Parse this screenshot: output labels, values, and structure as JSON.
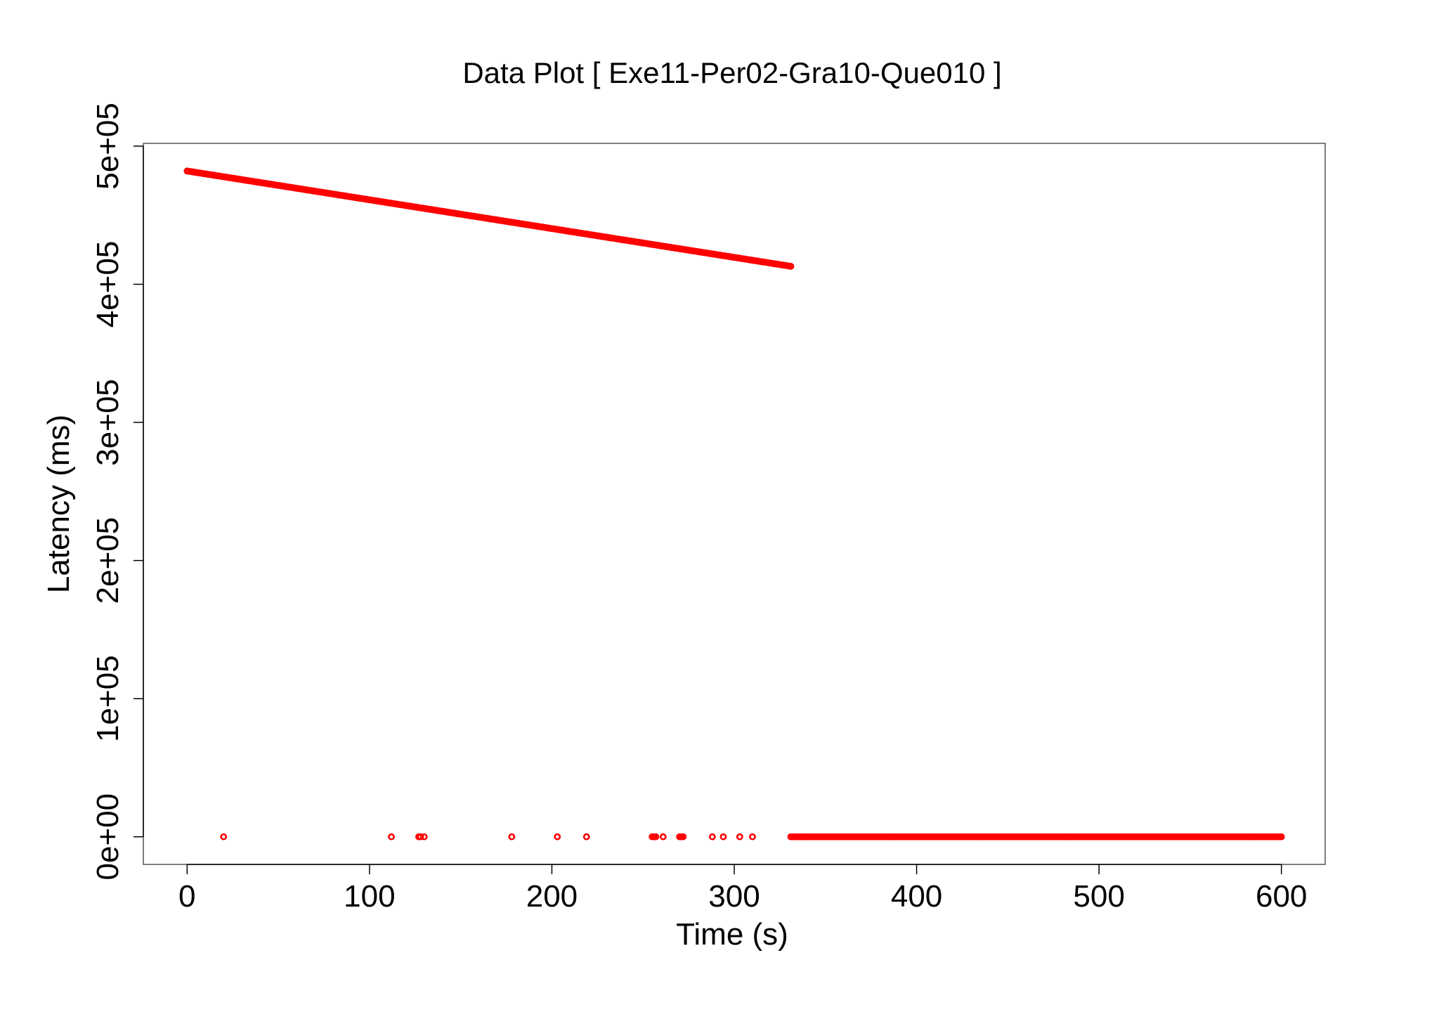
{
  "chart_data": {
    "type": "scatter",
    "title": "Data Plot [ Exe11-Per02-Gra10-Que010 ]",
    "xlabel": "Time (s)",
    "ylabel": "Latency (ms)",
    "xlim": [
      -24,
      624
    ],
    "ylim": [
      -20000,
      502000
    ],
    "x_ticks": [
      0,
      100,
      200,
      300,
      400,
      500,
      600
    ],
    "x_tick_labels": [
      "0",
      "100",
      "200",
      "300",
      "400",
      "500",
      "600"
    ],
    "y_ticks": [
      0,
      100000,
      200000,
      300000,
      400000,
      500000
    ],
    "y_tick_labels": [
      "0e+00",
      "1e+05",
      "2e+05",
      "3e+05",
      "4e+05",
      "5e+05"
    ],
    "grid": false,
    "legend": "none",
    "marker_color": "#ff0000",
    "series": [
      {
        "segments": [
          {
            "x_start": 0,
            "x_end": 331,
            "y_start": 482000,
            "y_end": 413000,
            "step": 1
          },
          {
            "x_start": 331,
            "x_end": 600,
            "y_start": 0,
            "y_end": 0,
            "step": 1
          }
        ],
        "points": [
          {
            "x": 20,
            "y": 0
          },
          {
            "x": 112,
            "y": 0
          },
          {
            "x": 127,
            "y": 0
          },
          {
            "x": 128,
            "y": 0
          },
          {
            "x": 130,
            "y": 0
          },
          {
            "x": 178,
            "y": 0
          },
          {
            "x": 203,
            "y": 0
          },
          {
            "x": 219,
            "y": 0
          },
          {
            "x": 255,
            "y": 0
          },
          {
            "x": 256,
            "y": 0
          },
          {
            "x": 257,
            "y": 0
          },
          {
            "x": 261,
            "y": 0
          },
          {
            "x": 270,
            "y": 0
          },
          {
            "x": 271,
            "y": 0
          },
          {
            "x": 272,
            "y": 0
          },
          {
            "x": 288,
            "y": 0
          },
          {
            "x": 294,
            "y": 0
          },
          {
            "x": 303,
            "y": 0
          },
          {
            "x": 310,
            "y": 0
          }
        ]
      }
    ]
  }
}
